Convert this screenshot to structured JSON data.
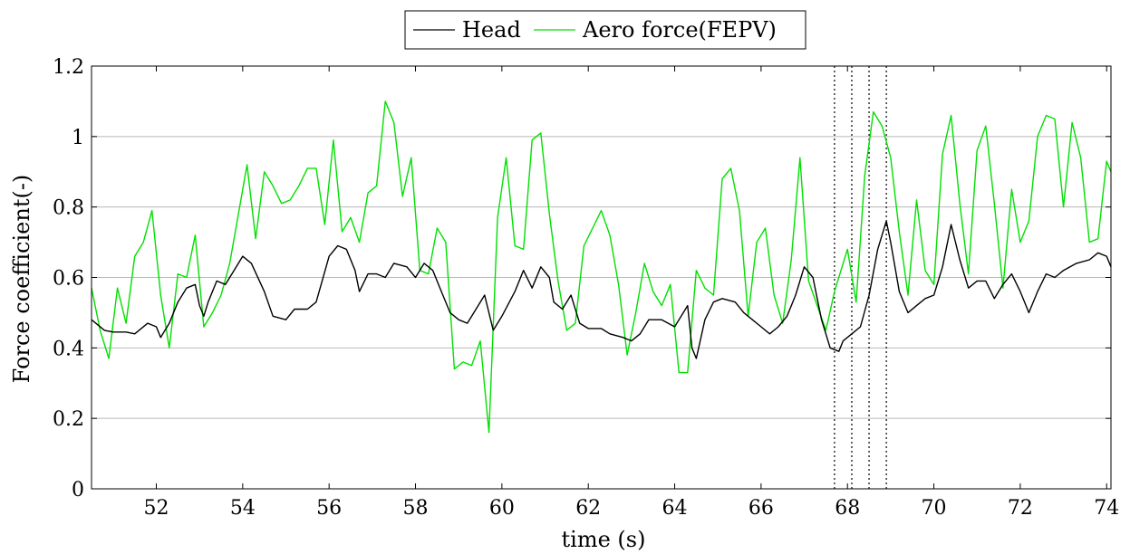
{
  "chart_data": {
    "type": "line",
    "xlabel": "time (s)",
    "ylabel": "Force coefficient(-)",
    "xlim": [
      50.5,
      74.1
    ],
    "ylim": [
      0,
      1.2
    ],
    "x_ticks": [
      "52",
      "54",
      "56",
      "58",
      "60",
      "62",
      "64",
      "66",
      "68",
      "70",
      "72",
      "74"
    ],
    "y_ticks": [
      "0",
      "0.2",
      "0.4",
      "0.6",
      "0.8",
      "1",
      "1.2"
    ],
    "grid": "horizontal",
    "legend_position": "top-center",
    "vertical_markers": [
      67.7,
      68.1,
      68.5,
      68.9
    ],
    "series": [
      {
        "name": "Head",
        "color": "#000000",
        "points": [
          [
            50.5,
            0.48
          ],
          [
            50.8,
            0.45
          ],
          [
            51.0,
            0.445
          ],
          [
            51.3,
            0.445
          ],
          [
            51.5,
            0.44
          ],
          [
            51.8,
            0.47
          ],
          [
            52.0,
            0.46
          ],
          [
            52.1,
            0.43
          ],
          [
            52.3,
            0.47
          ],
          [
            52.5,
            0.53
          ],
          [
            52.7,
            0.57
          ],
          [
            52.9,
            0.58
          ],
          [
            53.0,
            0.52
          ],
          [
            53.1,
            0.49
          ],
          [
            53.2,
            0.53
          ],
          [
            53.4,
            0.59
          ],
          [
            53.6,
            0.58
          ],
          [
            53.8,
            0.62
          ],
          [
            54.0,
            0.66
          ],
          [
            54.2,
            0.64
          ],
          [
            54.5,
            0.56
          ],
          [
            54.7,
            0.49
          ],
          [
            55.0,
            0.48
          ],
          [
            55.2,
            0.51
          ],
          [
            55.5,
            0.51
          ],
          [
            55.7,
            0.53
          ],
          [
            56.0,
            0.66
          ],
          [
            56.2,
            0.69
          ],
          [
            56.4,
            0.68
          ],
          [
            56.6,
            0.62
          ],
          [
            56.7,
            0.56
          ],
          [
            56.9,
            0.61
          ],
          [
            57.1,
            0.61
          ],
          [
            57.3,
            0.6
          ],
          [
            57.5,
            0.64
          ],
          [
            57.8,
            0.63
          ],
          [
            58.0,
            0.6
          ],
          [
            58.2,
            0.64
          ],
          [
            58.4,
            0.62
          ],
          [
            58.6,
            0.56
          ],
          [
            58.8,
            0.5
          ],
          [
            59.0,
            0.48
          ],
          [
            59.2,
            0.47
          ],
          [
            59.4,
            0.51
          ],
          [
            59.6,
            0.55
          ],
          [
            59.8,
            0.45
          ],
          [
            60.0,
            0.49
          ],
          [
            60.3,
            0.56
          ],
          [
            60.5,
            0.62
          ],
          [
            60.7,
            0.57
          ],
          [
            60.9,
            0.63
          ],
          [
            61.1,
            0.6
          ],
          [
            61.2,
            0.53
          ],
          [
            61.4,
            0.51
          ],
          [
            61.6,
            0.55
          ],
          [
            61.8,
            0.47
          ],
          [
            62.0,
            0.455
          ],
          [
            62.3,
            0.455
          ],
          [
            62.5,
            0.44
          ],
          [
            62.8,
            0.43
          ],
          [
            63.0,
            0.42
          ],
          [
            63.2,
            0.44
          ],
          [
            63.4,
            0.48
          ],
          [
            63.7,
            0.48
          ],
          [
            64.0,
            0.46
          ],
          [
            64.2,
            0.5
          ],
          [
            64.3,
            0.52
          ],
          [
            64.4,
            0.4
          ],
          [
            64.5,
            0.37
          ],
          [
            64.7,
            0.48
          ],
          [
            64.9,
            0.53
          ],
          [
            65.1,
            0.54
          ],
          [
            65.4,
            0.53
          ],
          [
            65.6,
            0.5
          ],
          [
            65.8,
            0.48
          ],
          [
            66.0,
            0.46
          ],
          [
            66.2,
            0.44
          ],
          [
            66.4,
            0.46
          ],
          [
            66.6,
            0.49
          ],
          [
            66.8,
            0.55
          ],
          [
            67.0,
            0.63
          ],
          [
            67.2,
            0.6
          ],
          [
            67.4,
            0.48
          ],
          [
            67.6,
            0.4
          ],
          [
            67.8,
            0.39
          ],
          [
            67.9,
            0.42
          ],
          [
            68.1,
            0.44
          ],
          [
            68.3,
            0.46
          ],
          [
            68.5,
            0.55
          ],
          [
            68.7,
            0.68
          ],
          [
            68.9,
            0.76
          ],
          [
            69.0,
            0.7
          ],
          [
            69.2,
            0.56
          ],
          [
            69.4,
            0.5
          ],
          [
            69.6,
            0.52
          ],
          [
            69.8,
            0.54
          ],
          [
            70.0,
            0.55
          ],
          [
            70.2,
            0.63
          ],
          [
            70.4,
            0.75
          ],
          [
            70.6,
            0.65
          ],
          [
            70.8,
            0.57
          ],
          [
            71.0,
            0.59
          ],
          [
            71.2,
            0.59
          ],
          [
            71.4,
            0.54
          ],
          [
            71.6,
            0.58
          ],
          [
            71.8,
            0.61
          ],
          [
            72.0,
            0.56
          ],
          [
            72.2,
            0.5
          ],
          [
            72.4,
            0.56
          ],
          [
            72.6,
            0.61
          ],
          [
            72.8,
            0.6
          ],
          [
            73.0,
            0.62
          ],
          [
            73.3,
            0.64
          ],
          [
            73.6,
            0.65
          ],
          [
            73.8,
            0.67
          ],
          [
            74.0,
            0.66
          ],
          [
            74.1,
            0.63
          ]
        ]
      },
      {
        "name": "Aero force(FEPV)",
        "color": "#00e000",
        "points": [
          [
            50.5,
            0.57
          ],
          [
            50.7,
            0.45
          ],
          [
            50.9,
            0.37
          ],
          [
            51.1,
            0.57
          ],
          [
            51.3,
            0.47
          ],
          [
            51.5,
            0.66
          ],
          [
            51.7,
            0.7
          ],
          [
            51.9,
            0.79
          ],
          [
            52.1,
            0.55
          ],
          [
            52.3,
            0.4
          ],
          [
            52.5,
            0.61
          ],
          [
            52.7,
            0.6
          ],
          [
            52.9,
            0.72
          ],
          [
            53.1,
            0.46
          ],
          [
            53.3,
            0.5
          ],
          [
            53.5,
            0.55
          ],
          [
            53.7,
            0.64
          ],
          [
            53.9,
            0.78
          ],
          [
            54.1,
            0.92
          ],
          [
            54.3,
            0.71
          ],
          [
            54.5,
            0.9
          ],
          [
            54.7,
            0.86
          ],
          [
            54.9,
            0.81
          ],
          [
            55.1,
            0.82
          ],
          [
            55.3,
            0.86
          ],
          [
            55.5,
            0.91
          ],
          [
            55.7,
            0.91
          ],
          [
            55.9,
            0.75
          ],
          [
            56.1,
            0.99
          ],
          [
            56.3,
            0.73
          ],
          [
            56.5,
            0.77
          ],
          [
            56.7,
            0.7
          ],
          [
            56.9,
            0.84
          ],
          [
            57.1,
            0.86
          ],
          [
            57.3,
            1.1
          ],
          [
            57.5,
            1.04
          ],
          [
            57.7,
            0.83
          ],
          [
            57.9,
            0.94
          ],
          [
            58.1,
            0.62
          ],
          [
            58.3,
            0.61
          ],
          [
            58.5,
            0.74
          ],
          [
            58.7,
            0.7
          ],
          [
            58.9,
            0.34
          ],
          [
            59.1,
            0.36
          ],
          [
            59.3,
            0.35
          ],
          [
            59.5,
            0.42
          ],
          [
            59.7,
            0.16
          ],
          [
            59.9,
            0.77
          ],
          [
            60.1,
            0.94
          ],
          [
            60.3,
            0.69
          ],
          [
            60.5,
            0.68
          ],
          [
            60.7,
            0.99
          ],
          [
            60.9,
            1.01
          ],
          [
            61.1,
            0.78
          ],
          [
            61.3,
            0.59
          ],
          [
            61.5,
            0.45
          ],
          [
            61.7,
            0.47
          ],
          [
            61.9,
            0.69
          ],
          [
            62.1,
            0.74
          ],
          [
            62.3,
            0.79
          ],
          [
            62.5,
            0.72
          ],
          [
            62.7,
            0.58
          ],
          [
            62.9,
            0.38
          ],
          [
            63.1,
            0.5
          ],
          [
            63.3,
            0.64
          ],
          [
            63.5,
            0.56
          ],
          [
            63.7,
            0.52
          ],
          [
            63.9,
            0.58
          ],
          [
            64.1,
            0.33
          ],
          [
            64.3,
            0.33
          ],
          [
            64.5,
            0.62
          ],
          [
            64.7,
            0.57
          ],
          [
            64.9,
            0.55
          ],
          [
            65.1,
            0.88
          ],
          [
            65.3,
            0.91
          ],
          [
            65.5,
            0.79
          ],
          [
            65.7,
            0.49
          ],
          [
            65.9,
            0.7
          ],
          [
            66.1,
            0.74
          ],
          [
            66.3,
            0.55
          ],
          [
            66.5,
            0.47
          ],
          [
            66.7,
            0.65
          ],
          [
            66.9,
            0.94
          ],
          [
            67.1,
            0.59
          ],
          [
            67.3,
            0.52
          ],
          [
            67.5,
            0.45
          ],
          [
            67.7,
            0.56
          ],
          [
            67.9,
            0.64
          ],
          [
            68.0,
            0.68
          ],
          [
            68.2,
            0.53
          ],
          [
            68.4,
            0.89
          ],
          [
            68.6,
            1.07
          ],
          [
            68.8,
            1.03
          ],
          [
            69.0,
            0.94
          ],
          [
            69.2,
            0.73
          ],
          [
            69.4,
            0.55
          ],
          [
            69.6,
            0.82
          ],
          [
            69.8,
            0.62
          ],
          [
            70.0,
            0.58
          ],
          [
            70.2,
            0.95
          ],
          [
            70.4,
            1.06
          ],
          [
            70.6,
            0.81
          ],
          [
            70.8,
            0.61
          ],
          [
            71.0,
            0.96
          ],
          [
            71.2,
            1.03
          ],
          [
            71.4,
            0.81
          ],
          [
            71.6,
            0.57
          ],
          [
            71.8,
            0.85
          ],
          [
            72.0,
            0.7
          ],
          [
            72.2,
            0.76
          ],
          [
            72.4,
            1.0
          ],
          [
            72.6,
            1.06
          ],
          [
            72.8,
            1.05
          ],
          [
            73.0,
            0.8
          ],
          [
            73.2,
            1.04
          ],
          [
            73.4,
            0.94
          ],
          [
            73.6,
            0.7
          ],
          [
            73.8,
            0.71
          ],
          [
            74.0,
            0.93
          ],
          [
            74.1,
            0.9
          ]
        ]
      }
    ]
  }
}
